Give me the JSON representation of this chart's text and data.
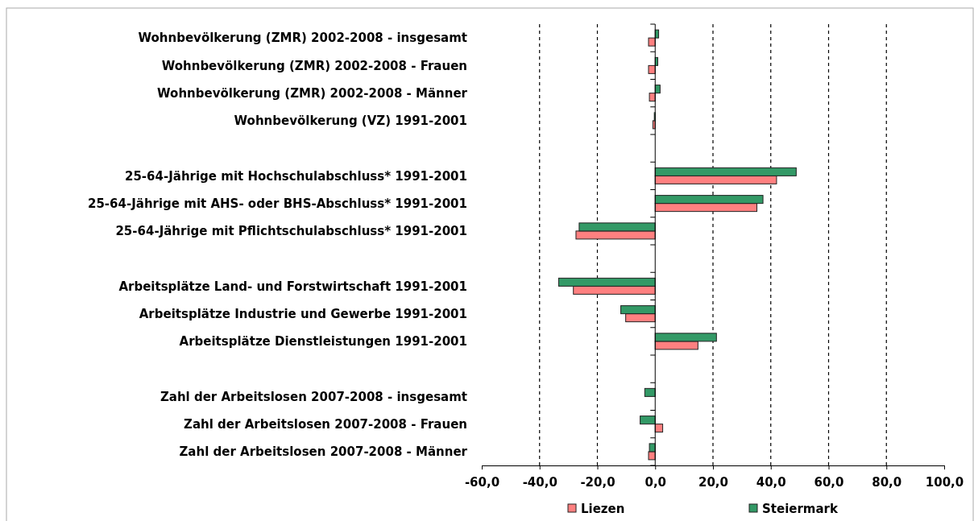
{
  "chart_data": {
    "type": "bar",
    "orientation": "horizontal",
    "categories": [
      "Wohnbevölkerung (ZMR) 2002-2008 - insgesamt",
      "Wohnbevölkerung (ZMR) 2002-2008 - Frauen",
      "Wohnbevölkerung (ZMR) 2002-2008 - Männer",
      "Wohnbevölkerung (VZ) 1991-2001",
      null,
      "25-64-Jährige mit Hochschulabschluss* 1991-2001",
      "25-64-Jährige mit AHS- oder BHS-Abschluss* 1991-2001",
      "25-64-Jährige mit Pflichtschulabschluss* 1991-2001",
      null,
      "Arbeitsplätze Land- und Forstwirtschaft 1991-2001",
      "Arbeitsplätze Industrie und Gewerbe 1991-2001",
      "Arbeitsplätze Dienstleistungen 1991-2001",
      null,
      "Zahl der Arbeitslosen 2007-2008 - insgesamt",
      "Zahl der Arbeitslosen 2007-2008 - Frauen",
      "Zahl der Arbeitslosen 2007-2008 - Männer"
    ],
    "series": [
      {
        "name": "Liezen",
        "color": "#ff8080",
        "values": [
          -2.3,
          -2.3,
          -2.0,
          -0.8,
          null,
          42.0,
          35.2,
          -27.4,
          null,
          -28.3,
          -10.2,
          14.8,
          null,
          null,
          2.6,
          -2.3
        ]
      },
      {
        "name": "Steiermark",
        "color": "#339966",
        "values": [
          1.2,
          0.9,
          1.7,
          -0.3,
          null,
          48.8,
          37.3,
          -26.3,
          null,
          -33.4,
          -11.9,
          21.2,
          null,
          -3.6,
          -5.2,
          -2.0
        ]
      }
    ],
    "xlim": [
      -60,
      100
    ],
    "xticks": [
      {
        "value": -60,
        "label": "-60,0"
      },
      {
        "value": -40,
        "label": "-40,0"
      },
      {
        "value": -20,
        "label": "-20,0"
      },
      {
        "value": 0,
        "label": "0,0"
      },
      {
        "value": 20,
        "label": "20,0"
      },
      {
        "value": 40,
        "label": "40,0"
      },
      {
        "value": 60,
        "label": "60,0"
      },
      {
        "value": 80,
        "label": "80,0"
      },
      {
        "value": 100,
        "label": "100,0"
      }
    ],
    "grid": "x",
    "legend": "bottom"
  }
}
